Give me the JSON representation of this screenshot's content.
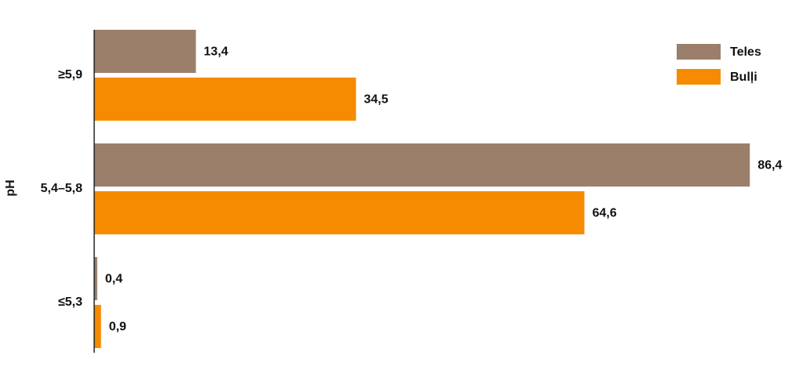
{
  "chart_data": {
    "type": "bar",
    "orientation": "horizontal",
    "y_label": "pH",
    "categories": [
      "≥5,9",
      "5,4–5,8",
      "≤5,3"
    ],
    "series": [
      {
        "name": "Teles",
        "color": "#9b7f6a",
        "values": [
          13.4,
          86.4,
          0.4
        ],
        "value_labels": [
          "13,4",
          "86,4",
          "0,4"
        ]
      },
      {
        "name": "Bulļi",
        "color": "#f68b00",
        "values": [
          34.5,
          64.6,
          0.9
        ],
        "value_labels": [
          "34,5",
          "64,6",
          "0,9"
        ]
      }
    ],
    "xlim": [
      0,
      90
    ],
    "legend": "top-right"
  }
}
